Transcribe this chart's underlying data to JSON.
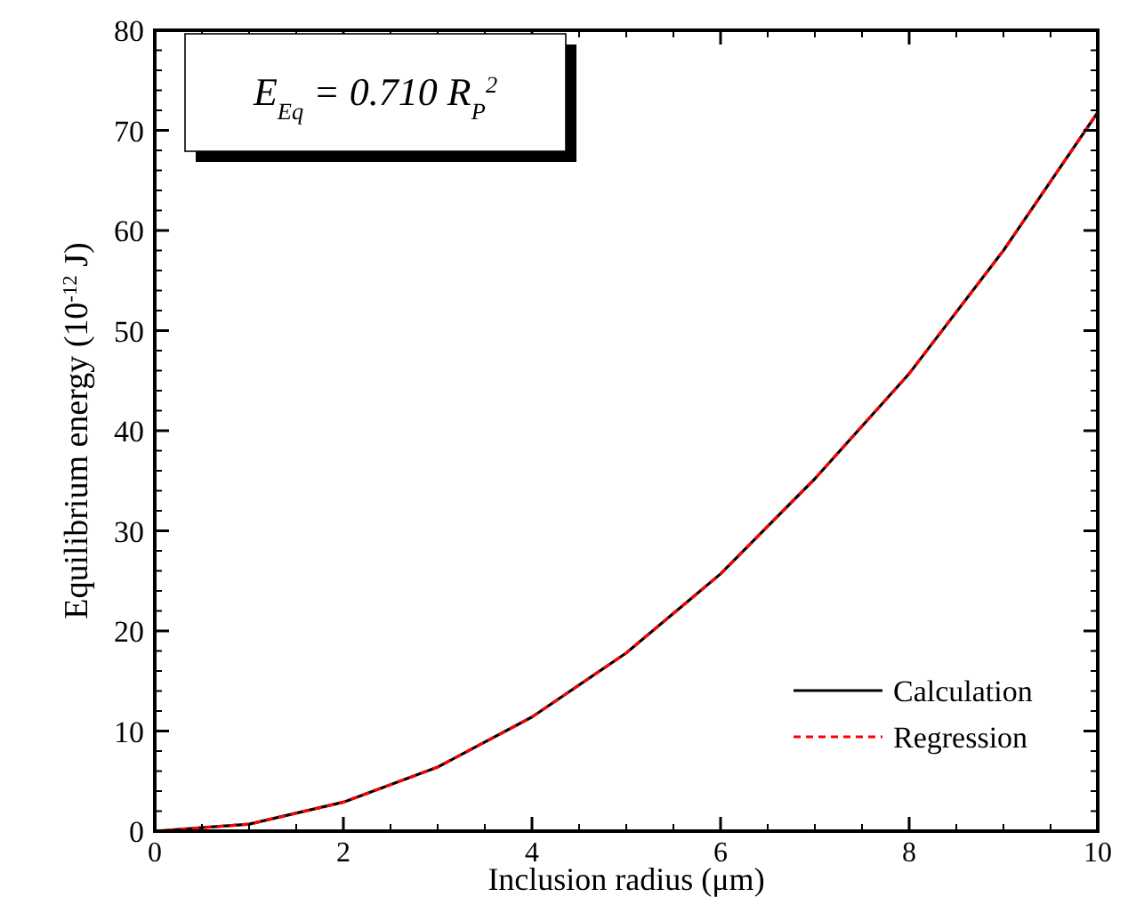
{
  "chart_data": {
    "type": "line",
    "xlabel": "Inclusion radius (μm)",
    "ylabel": "Equilibrium energy (10$^{-12}$ J)",
    "x": [
      0,
      1,
      2,
      3,
      4,
      5,
      6,
      7,
      8,
      9,
      10
    ],
    "series": [
      {
        "name": "Calculation",
        "color": "#000000",
        "line_style": "solid",
        "values": [
          0,
          0.7,
          2.9,
          6.4,
          11.4,
          17.8,
          25.7,
          35.2,
          45.7,
          58,
          71.8
        ]
      },
      {
        "name": "Regression",
        "color": "#ff0000",
        "line_style": "dashed",
        "values": [
          0,
          0.7,
          2.9,
          6.4,
          11.4,
          17.8,
          25.7,
          35.2,
          45.7,
          58,
          71.8
        ]
      }
    ],
    "xlim": [
      0,
      10
    ],
    "xticks": [
      0,
      2,
      4,
      6,
      8,
      10
    ],
    "ylim": [
      0,
      80
    ],
    "yticks": [
      0,
      10,
      20,
      30,
      40,
      50,
      60,
      70,
      80
    ],
    "legend": "bottom right",
    "grid": false,
    "annotations": [
      "E$_{Eq}$ = 0.710 R$_{P}$$^{2}$"
    ]
  }
}
